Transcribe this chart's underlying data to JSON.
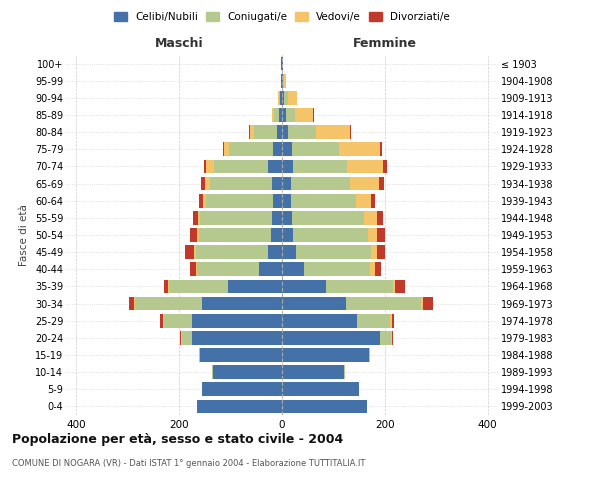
{
  "age_groups": [
    "0-4",
    "5-9",
    "10-14",
    "15-19",
    "20-24",
    "25-29",
    "30-34",
    "35-39",
    "40-44",
    "45-49",
    "50-54",
    "55-59",
    "60-64",
    "65-69",
    "70-74",
    "75-79",
    "80-84",
    "85-89",
    "90-94",
    "95-99",
    "100+"
  ],
  "birth_years": [
    "1999-2003",
    "1994-1998",
    "1989-1993",
    "1984-1988",
    "1979-1983",
    "1974-1978",
    "1969-1973",
    "1964-1968",
    "1959-1963",
    "1954-1958",
    "1949-1953",
    "1944-1948",
    "1939-1943",
    "1934-1938",
    "1929-1933",
    "1924-1928",
    "1919-1923",
    "1914-1918",
    "1909-1913",
    "1904-1908",
    "≤ 1903"
  ],
  "maschi": {
    "celibi": [
      165,
      155,
      135,
      160,
      175,
      175,
      155,
      105,
      45,
      28,
      22,
      20,
      18,
      20,
      28,
      18,
      10,
      5,
      3,
      1,
      1
    ],
    "coniugati": [
      0,
      0,
      2,
      2,
      20,
      55,
      130,
      115,
      120,
      140,
      140,
      140,
      130,
      120,
      105,
      85,
      45,
      10,
      3,
      0,
      0
    ],
    "vedovi": [
      0,
      0,
      0,
      0,
      2,
      2,
      2,
      2,
      2,
      3,
      4,
      4,
      5,
      10,
      15,
      10,
      8,
      5,
      2,
      0,
      0
    ],
    "divorziati": [
      0,
      0,
      0,
      0,
      2,
      5,
      10,
      8,
      12,
      18,
      12,
      10,
      8,
      8,
      3,
      2,
      2,
      0,
      0,
      0,
      0
    ]
  },
  "femmine": {
    "nubili": [
      165,
      150,
      120,
      170,
      190,
      145,
      125,
      85,
      42,
      28,
      22,
      20,
      18,
      18,
      22,
      20,
      12,
      8,
      4,
      2,
      1
    ],
    "coniugate": [
      0,
      0,
      2,
      2,
      22,
      65,
      145,
      130,
      130,
      145,
      145,
      140,
      125,
      115,
      105,
      90,
      55,
      18,
      8,
      2,
      0
    ],
    "vedove": [
      0,
      0,
      0,
      0,
      2,
      3,
      4,
      5,
      8,
      12,
      18,
      25,
      30,
      55,
      70,
      80,
      65,
      35,
      18,
      3,
      0
    ],
    "divorziate": [
      0,
      0,
      0,
      0,
      2,
      5,
      20,
      20,
      12,
      15,
      15,
      12,
      8,
      10,
      8,
      5,
      3,
      2,
      0,
      0,
      0
    ]
  },
  "colors": {
    "celibi": "#4472a8",
    "coniugati": "#b5c98e",
    "vedovi": "#f5c469",
    "divorziati": "#c0392b"
  },
  "title": "Popolazione per età, sesso e stato civile - 2004",
  "subtitle": "COMUNE DI NOGARA (VR) - Dati ISTAT 1° gennaio 2004 - Elaborazione TUTTITALIA.IT",
  "xlabel_maschi": "Maschi",
  "xlabel_femmine": "Femmine",
  "ylabel_left": "Fasce di età",
  "xlim": 420,
  "background_color": "#ffffff",
  "grid_color": "#cccccc"
}
